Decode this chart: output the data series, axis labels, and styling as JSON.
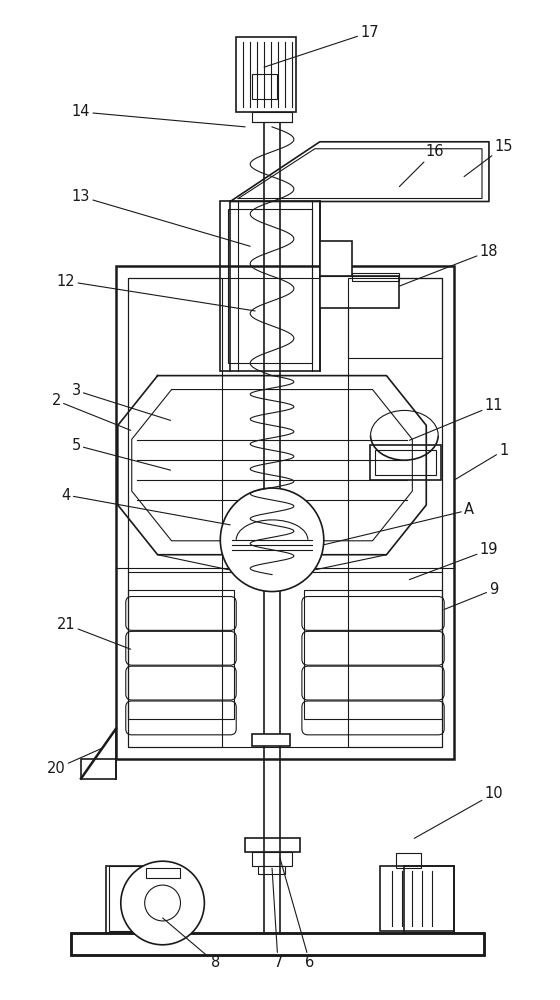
{
  "bg_color": "#ffffff",
  "line_color": "#1a1a1a",
  "lw_main": 1.8,
  "lw_med": 1.2,
  "lw_thin": 0.8,
  "label_fontsize": 10.5,
  "fig_width": 5.6,
  "fig_height": 10.0
}
